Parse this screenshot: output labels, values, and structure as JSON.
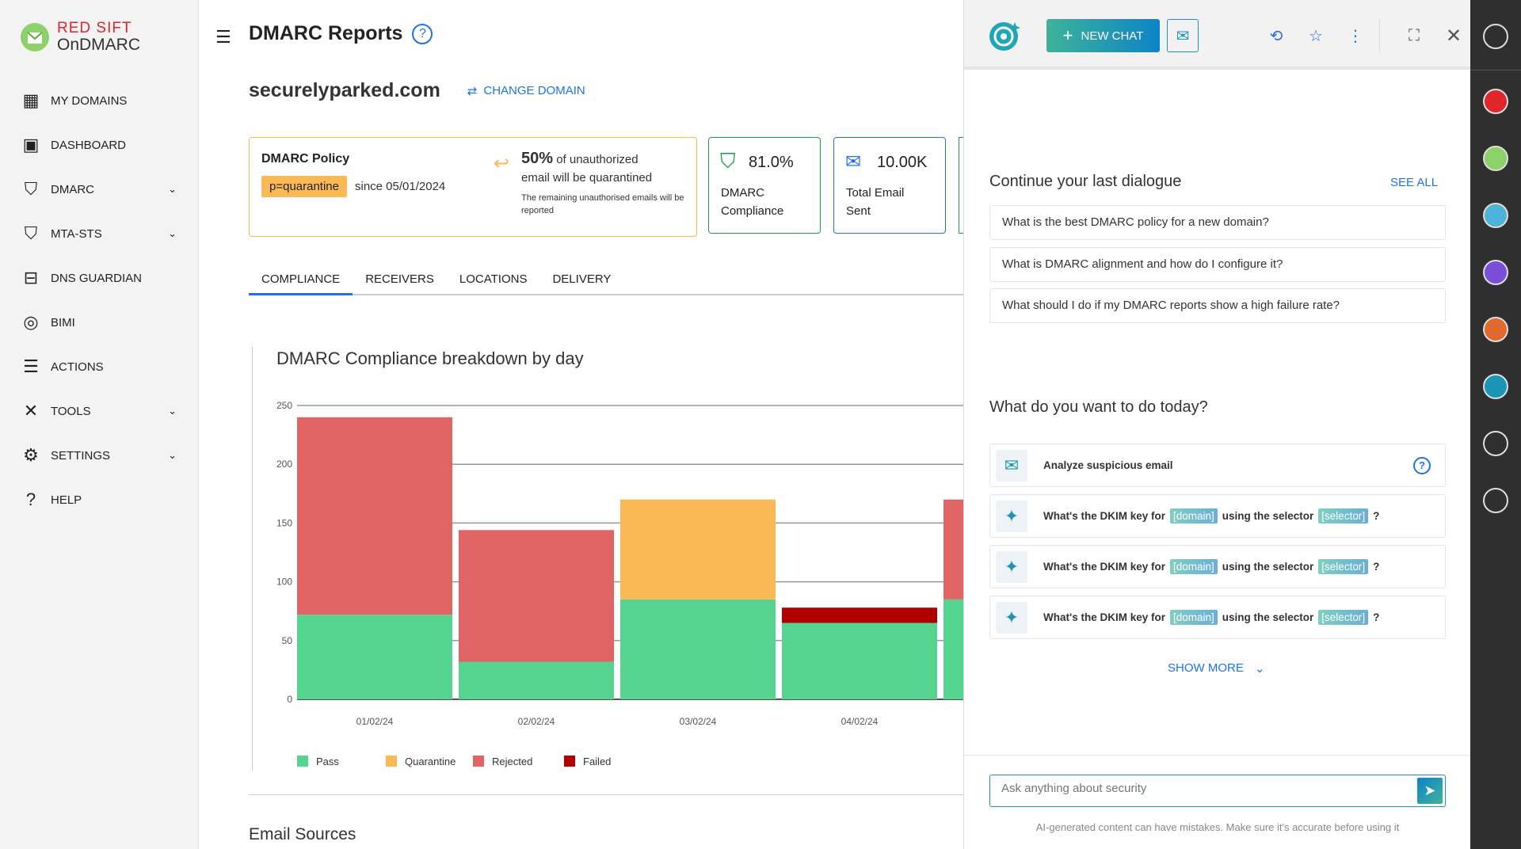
{
  "brand": {
    "line1": "RED SIFT",
    "line2": "OnDMARC"
  },
  "sidebar": {
    "items": [
      {
        "label": "MY DOMAINS",
        "icon": "building-icon",
        "expandable": false
      },
      {
        "label": "DASHBOARD",
        "icon": "dashboard-icon",
        "expandable": false
      },
      {
        "label": "DMARC",
        "icon": "shield-lock-icon",
        "expandable": true
      },
      {
        "label": "MTA-STS",
        "icon": "shield-arrows-icon",
        "expandable": true
      },
      {
        "label": "DNS GUARDIAN",
        "icon": "dns-guardian-icon",
        "expandable": false
      },
      {
        "label": "BIMI",
        "icon": "bimi-icon",
        "expandable": false
      },
      {
        "label": "ACTIONS",
        "icon": "actions-icon",
        "expandable": false
      },
      {
        "label": "TOOLS",
        "icon": "tools-icon",
        "expandable": true
      },
      {
        "label": "SETTINGS",
        "icon": "gear-icon",
        "expandable": true
      },
      {
        "label": "HELP",
        "icon": "help-icon",
        "expandable": false
      }
    ]
  },
  "header": {
    "title": "DMARC Reports"
  },
  "domain": {
    "name": "securelyparked.com",
    "change_label": "CHANGE DOMAIN"
  },
  "policy": {
    "title": "DMARC Policy",
    "badge": "p=quarantine",
    "since": "since 05/01/2024",
    "percent": "50%",
    "desc1": " of unauthorized",
    "desc2": "email will be quarantined",
    "note": "The remaining unauthorised emails will be reported"
  },
  "stats": [
    {
      "value": "81.0%",
      "label1": "DMARC",
      "label2": "Compliance",
      "color": "#1a9c4a"
    },
    {
      "value": "10.00K",
      "label1": "Total Email",
      "label2": "Sent",
      "color": "#1e73e8"
    }
  ],
  "tabs": [
    {
      "label": "COMPLIANCE",
      "active": true
    },
    {
      "label": "RECEIVERS"
    },
    {
      "label": "LOCATIONS"
    },
    {
      "label": "DELIVERY"
    }
  ],
  "chart_data": {
    "type": "bar",
    "stacked": true,
    "title": "DMARC Compliance breakdown by day",
    "categories": [
      "01/02/24",
      "02/02/24",
      "03/02/24",
      "04/02/24",
      ""
    ],
    "yticks": [
      0,
      50,
      100,
      150,
      200,
      250
    ],
    "ylim": [
      0,
      250
    ],
    "grid": true,
    "legend": "bottom-left",
    "series": [
      {
        "name": "Pass",
        "color": "#55d48f",
        "values": [
          72,
          32,
          85,
          65,
          85
        ]
      },
      {
        "name": "Quarantine",
        "color": "#fbb955",
        "values": [
          0,
          0,
          85,
          0,
          0
        ]
      },
      {
        "name": "Rejected",
        "color": "#e06464",
        "values": [
          168,
          112,
          0,
          0,
          85
        ]
      },
      {
        "name": "Failed",
        "color": "#b00000",
        "values": [
          0,
          0,
          0,
          13,
          0
        ]
      }
    ]
  },
  "email_sources": {
    "title": "Email Sources"
  },
  "panel": {
    "new_chat": "NEW CHAT",
    "continue_title": "Continue your last dialogue",
    "see_all": "SEE ALL",
    "recent": [
      "What is the best DMARC policy for a new domain?",
      "What is DMARC alignment and how do I configure it?",
      "What should I do if my DMARC reports show a high failure rate?"
    ],
    "todo_title": "What do you want to do today?",
    "analyze": "Analyze suspicious email",
    "dkim": [
      {
        "pre": "What's the DKIM key for",
        "tok1": "[domain]",
        "mid": "using the selector",
        "tok2": "[selector]",
        "post": "?"
      },
      {
        "pre": "What's the DKIM key for",
        "tok1": "[domain]",
        "mid": "using the selector",
        "tok2": "[selector]",
        "post": "?"
      },
      {
        "pre": "What's the DKIM key for",
        "tok1": "[domain]",
        "mid": "using the selector",
        "tok2": "[selector]",
        "post": "?"
      }
    ],
    "show_more": "SHOW MORE",
    "input_placeholder": "Ask anything about security",
    "disclaimer": "AI-generated content can have mistakes. Make sure it's accurate before using it"
  },
  "rail": [
    "user-icon",
    "redsift-icon",
    "ondmarc-icon",
    "certificates-icon",
    "brand-trust-icon",
    "asm-icon",
    "radar-ai-icon",
    "tools-icon",
    "rocket-icon"
  ]
}
